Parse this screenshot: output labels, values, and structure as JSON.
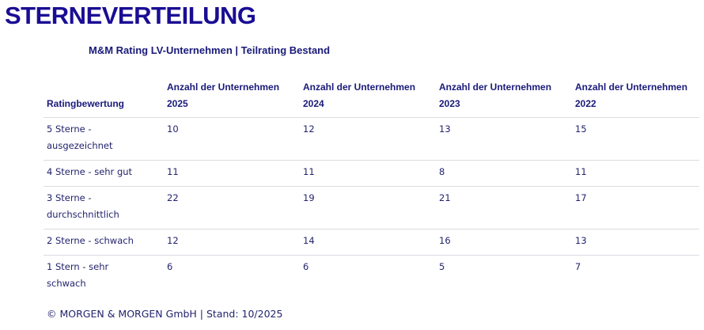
{
  "header": {
    "title": "STERNEVERTEILUNG",
    "subtitle": "M&M Rating LV-Unternehmen | Teilrating Bestand"
  },
  "table": {
    "columns": [
      "Ratingbewertung",
      "Anzahl der Unternehmen 2025",
      "Anzahl der Unternehmen 2024",
      "Anzahl der Unternehmen 2023",
      "Anzahl der Unternehmen 2022"
    ],
    "rows": [
      [
        "5 Sterne - ausgezeichnet",
        10,
        12,
        13,
        15
      ],
      [
        "4 Sterne - sehr gut",
        11,
        11,
        8,
        11
      ],
      [
        "3 Sterne - durchschnittlich",
        22,
        19,
        21,
        17
      ],
      [
        "2 Sterne - schwach",
        12,
        14,
        16,
        13
      ],
      [
        "1 Stern - sehr schwach",
        6,
        6,
        5,
        7
      ]
    ]
  },
  "footer": "© MORGEN & MORGEN GmbH | Stand: 10/2025"
}
